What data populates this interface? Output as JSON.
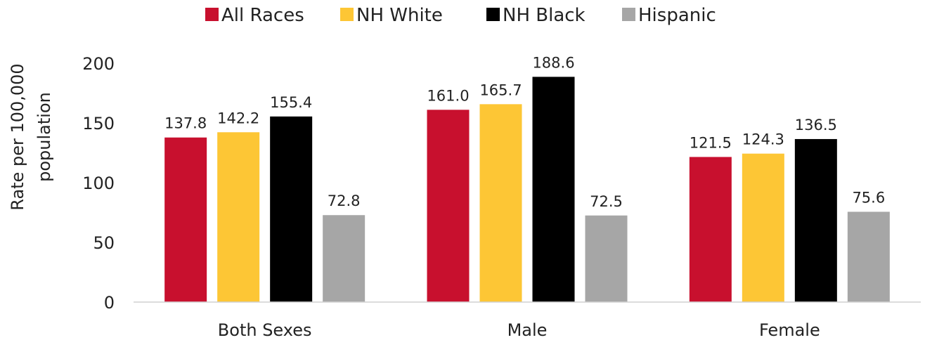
{
  "chart_data": {
    "type": "bar",
    "categories": [
      "Both Sexes",
      "Male",
      "Female"
    ],
    "series": [
      {
        "name": "All Races",
        "color": "#c8102e",
        "values": [
          137.8,
          161.0,
          121.5
        ],
        "labels": [
          "137.8",
          "161.0",
          "121.5"
        ]
      },
      {
        "name": "NH White",
        "color": "#fdc635",
        "values": [
          142.2,
          165.7,
          124.3
        ],
        "labels": [
          "142.2",
          "165.7",
          "124.3"
        ]
      },
      {
        "name": "NH Black",
        "color": "#000000",
        "values": [
          155.4,
          188.6,
          136.5
        ],
        "labels": [
          "155.4",
          "188.6",
          "136.5"
        ]
      },
      {
        "name": "Hispanic",
        "color": "#a6a6a6",
        "values": [
          72.8,
          72.5,
          75.6
        ],
        "labels": [
          "72.8",
          "72.5",
          "75.6"
        ]
      }
    ],
    "ylabel_lines": [
      "Rate per 100,000",
      "population"
    ],
    "ylim": [
      0,
      200
    ],
    "yticks": [
      0,
      50,
      100,
      150,
      200
    ],
    "grid": false,
    "legend": "top"
  }
}
